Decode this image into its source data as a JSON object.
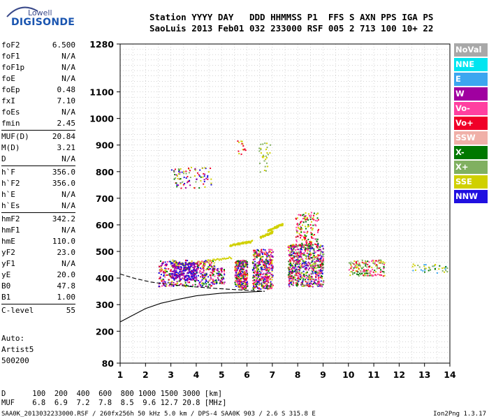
{
  "logo": {
    "top": "Lowell",
    "bottom": "DIGISONDE"
  },
  "header": {
    "line1": "Station YYYY DAY   DDD HHMMSS P1  FFS S AXN PPS IGA PS",
    "line2": "SaoLuis 2013 Feb01 032 233000 RSF 005 2 713 100 10+ 22"
  },
  "params": [
    {
      "label": "foF2",
      "value": "6.500"
    },
    {
      "label": "foF1",
      "value": "N/A"
    },
    {
      "label": "foF1p",
      "value": "N/A"
    },
    {
      "label": "foE",
      "value": "N/A"
    },
    {
      "label": "foEp",
      "value": "0.48"
    },
    {
      "label": "fxI",
      "value": "7.10"
    },
    {
      "label": "foEs",
      "value": "N/A"
    },
    {
      "label": "fmin",
      "value": "2.45"
    },
    {
      "sep": true
    },
    {
      "label": "MUF(D)",
      "value": "20.84"
    },
    {
      "label": "M(D)",
      "value": "3.21"
    },
    {
      "label": "D",
      "value": "N/A"
    },
    {
      "sep": true
    },
    {
      "label": "h`F",
      "value": "356.0"
    },
    {
      "label": "h`F2",
      "value": "356.0"
    },
    {
      "label": "h`E",
      "value": "N/A"
    },
    {
      "label": "h`Es",
      "value": "N/A"
    },
    {
      "sep": true
    },
    {
      "label": "hmF2",
      "value": "342.2"
    },
    {
      "label": "hmF1",
      "value": "N/A"
    },
    {
      "label": "hmE",
      "value": "110.0"
    },
    {
      "label": "yF2",
      "value": "23.0"
    },
    {
      "label": "yF1",
      "value": "N/A"
    },
    {
      "label": "yE",
      "value": "20.0"
    },
    {
      "label": "B0",
      "value": "47.8"
    },
    {
      "label": "B1",
      "value": "1.00"
    },
    {
      "sep": true
    },
    {
      "label": "C-level",
      "value": "55"
    }
  ],
  "autoscale": {
    "line1": "Auto:",
    "line2": "Artist5",
    "line3": "500200"
  },
  "legend": [
    {
      "label": "NoVal",
      "color": "#a8a8a8"
    },
    {
      "label": "NNE",
      "color": "#00e5f0"
    },
    {
      "label": "E",
      "color": "#3ca6f0"
    },
    {
      "label": "W",
      "color": "#a000a0"
    },
    {
      "label": "Vo-",
      "color": "#ff40a0"
    },
    {
      "label": "Vo+",
      "color": "#f00028"
    },
    {
      "label": "SSW",
      "color": "#f0b0a8"
    },
    {
      "label": "X-",
      "color": "#007800"
    },
    {
      "label": "X+",
      "color": "#80b060"
    },
    {
      "label": "SSE",
      "color": "#d0d000"
    },
    {
      "label": "NNW",
      "color": "#2010e0"
    }
  ],
  "muf_table": {
    "d_line": "D      100  200  400  600  800 1000 1500 3000 [km]",
    "muf_line": "MUF    6.8  6.9  7.2  7.8  8.5  9.6 12.7 20.8 [MHz]"
  },
  "footer": {
    "left": "SAA0K_2013032233000.RSF / 260fx256h 50 kHz 5.0 km / DPS-4 SAA0K 903 / 2.6 S 315.8 E",
    "right": "Ion2Png 1.3.17"
  },
  "chart_data": {
    "type": "scatter",
    "xlim": [
      1,
      14
    ],
    "ylim": [
      80,
      1280
    ],
    "x_ticks": [
      1,
      2,
      3,
      4,
      5,
      6,
      7,
      8,
      9,
      10,
      11,
      12,
      13,
      14
    ],
    "y_ticks": [
      80,
      200,
      300,
      400,
      500,
      600,
      700,
      800,
      900,
      1000,
      1100,
      1280
    ],
    "grid": true,
    "clusters": [
      {
        "x": [
          2.5,
          4.7
        ],
        "y": [
          370,
          470
        ],
        "colors": [
          "#a000a0",
          "#2010e0",
          "#f00028",
          "#007800",
          "#d0d000",
          "#ff40a0"
        ],
        "n": 420
      },
      {
        "x": [
          3.0,
          4.0
        ],
        "y": [
          395,
          460
        ],
        "colors": [
          "#a000a0",
          "#2010e0"
        ],
        "n": 200
      },
      {
        "x": [
          4.6,
          5.1
        ],
        "y": [
          380,
          440
        ],
        "colors": [
          "#a000a0",
          "#2010e0",
          "#f00028",
          "#ff40a0",
          "#007800"
        ],
        "n": 80
      },
      {
        "x": [
          5.5,
          6.0
        ],
        "y": [
          360,
          470
        ],
        "colors": [
          "#f00028",
          "#ff40a0",
          "#a000a0",
          "#007800",
          "#2010e0",
          "#d0d000"
        ],
        "n": 300
      },
      {
        "x": [
          6.2,
          7.0
        ],
        "y": [
          360,
          510
        ],
        "colors": [
          "#f00028",
          "#ff40a0",
          "#007800",
          "#d0d000",
          "#a000a0",
          "#2010e0"
        ],
        "n": 420
      },
      {
        "x": [
          7.6,
          9.0
        ],
        "y": [
          370,
          530
        ],
        "colors": [
          "#f00028",
          "#ff40a0",
          "#007800",
          "#d0d000",
          "#a000a0",
          "#2010e0",
          "#80b060"
        ],
        "n": 700
      },
      {
        "x": [
          7.9,
          8.8
        ],
        "y": [
          520,
          650
        ],
        "colors": [
          "#d0d000",
          "#f00028",
          "#ff40a0",
          "#007800"
        ],
        "n": 160
      },
      {
        "x": [
          3.0,
          4.6
        ],
        "y": [
          740,
          820
        ],
        "colors": [
          "#007800",
          "#d0d000",
          "#f00028",
          "#2010e0",
          "#a000a0",
          "#80b060"
        ],
        "n": 90
      },
      {
        "x": [
          5.6,
          6.0
        ],
        "y": [
          860,
          920
        ],
        "colors": [
          "#d0d000",
          "#f00028"
        ],
        "n": 14
      },
      {
        "x": [
          6.4,
          6.9
        ],
        "y": [
          800,
          910
        ],
        "colors": [
          "#d0d000",
          "#80b060"
        ],
        "n": 30
      },
      {
        "x": [
          10.0,
          11.4
        ],
        "y": [
          410,
          470
        ],
        "colors": [
          "#007800",
          "#f00028",
          "#ff40a0",
          "#80b060",
          "#d0d000"
        ],
        "n": 160
      },
      {
        "x": [
          12.5,
          13.9
        ],
        "y": [
          420,
          455
        ],
        "colors": [
          "#007800",
          "#d0d000",
          "#80b060",
          "#3ca6f0"
        ],
        "n": 40
      }
    ],
    "streaks": [
      {
        "x": [
          3.0,
          5.4
        ],
        "y": [
          447,
          480
        ],
        "color": "#d0d000"
      },
      {
        "x": [
          5.3,
          6.2
        ],
        "y": [
          525,
          540
        ],
        "color": "#d0d000"
      },
      {
        "x": [
          6.5,
          7.0
        ],
        "y": [
          555,
          575
        ],
        "color": "#d0d000"
      },
      {
        "x": [
          6.8,
          7.4
        ],
        "y": [
          580,
          605
        ],
        "color": "#d0d000"
      }
    ],
    "traces": [
      {
        "points": [
          [
            1.0,
            235
          ],
          [
            1.5,
            260
          ],
          [
            2.0,
            285
          ],
          [
            2.6,
            305
          ],
          [
            3.3,
            320
          ],
          [
            4.0,
            333
          ],
          [
            5.0,
            343
          ],
          [
            6.0,
            347
          ],
          [
            6.6,
            350
          ]
        ]
      },
      {
        "points": [
          [
            1.0,
            415
          ],
          [
            1.6,
            398
          ],
          [
            2.2,
            385
          ],
          [
            3.0,
            375
          ],
          [
            3.8,
            368
          ],
          [
            4.6,
            362
          ],
          [
            5.4,
            357
          ],
          [
            6.2,
            353
          ],
          [
            6.7,
            350
          ]
        ],
        "dashed": true
      }
    ]
  }
}
